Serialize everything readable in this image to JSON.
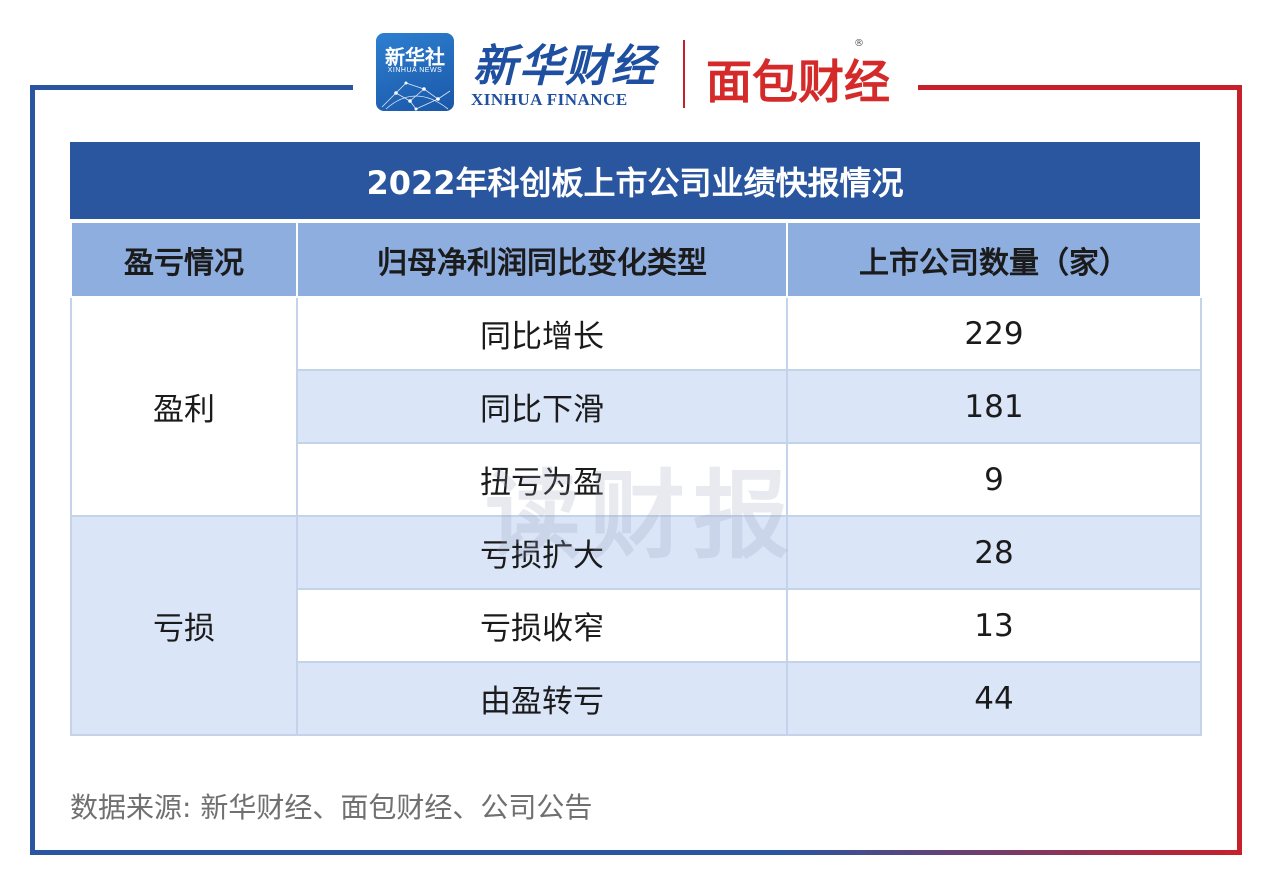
{
  "logos": {
    "xinhuashe_cn": "新华社",
    "xinhuashe_en": "XINHUA NEWS",
    "xhfinance_cn": "新华财经",
    "xhfinance_en": "XINHUA FINANCE",
    "mianbao_cn": "面包财经",
    "mianbao_reg": "®"
  },
  "table": {
    "title": "2022年科创板上市公司业绩快报情况",
    "headers": [
      "盈亏情况",
      "归母净利润同比变化类型",
      "上市公司数量（家）"
    ],
    "groups": [
      {
        "category": "盈利",
        "rows": [
          {
            "type": "同比增长",
            "count": "229"
          },
          {
            "type": "同比下滑",
            "count": "181"
          },
          {
            "type": "扭亏为盈",
            "count": "9"
          }
        ]
      },
      {
        "category": "亏损",
        "rows": [
          {
            "type": "亏损扩大",
            "count": "28"
          },
          {
            "type": "亏损收窄",
            "count": "13"
          },
          {
            "type": "由盈转亏",
            "count": "44"
          }
        ]
      }
    ]
  },
  "watermark": "读财报",
  "source": "数据来源: 新华财经、面包财经、公司公告",
  "colors": {
    "frame_blue": "#2a55a1",
    "frame_red": "#c8202a",
    "title_bg": "#2a559f",
    "header_bg": "#8eaee0",
    "row_blue": "#dae5f8"
  }
}
